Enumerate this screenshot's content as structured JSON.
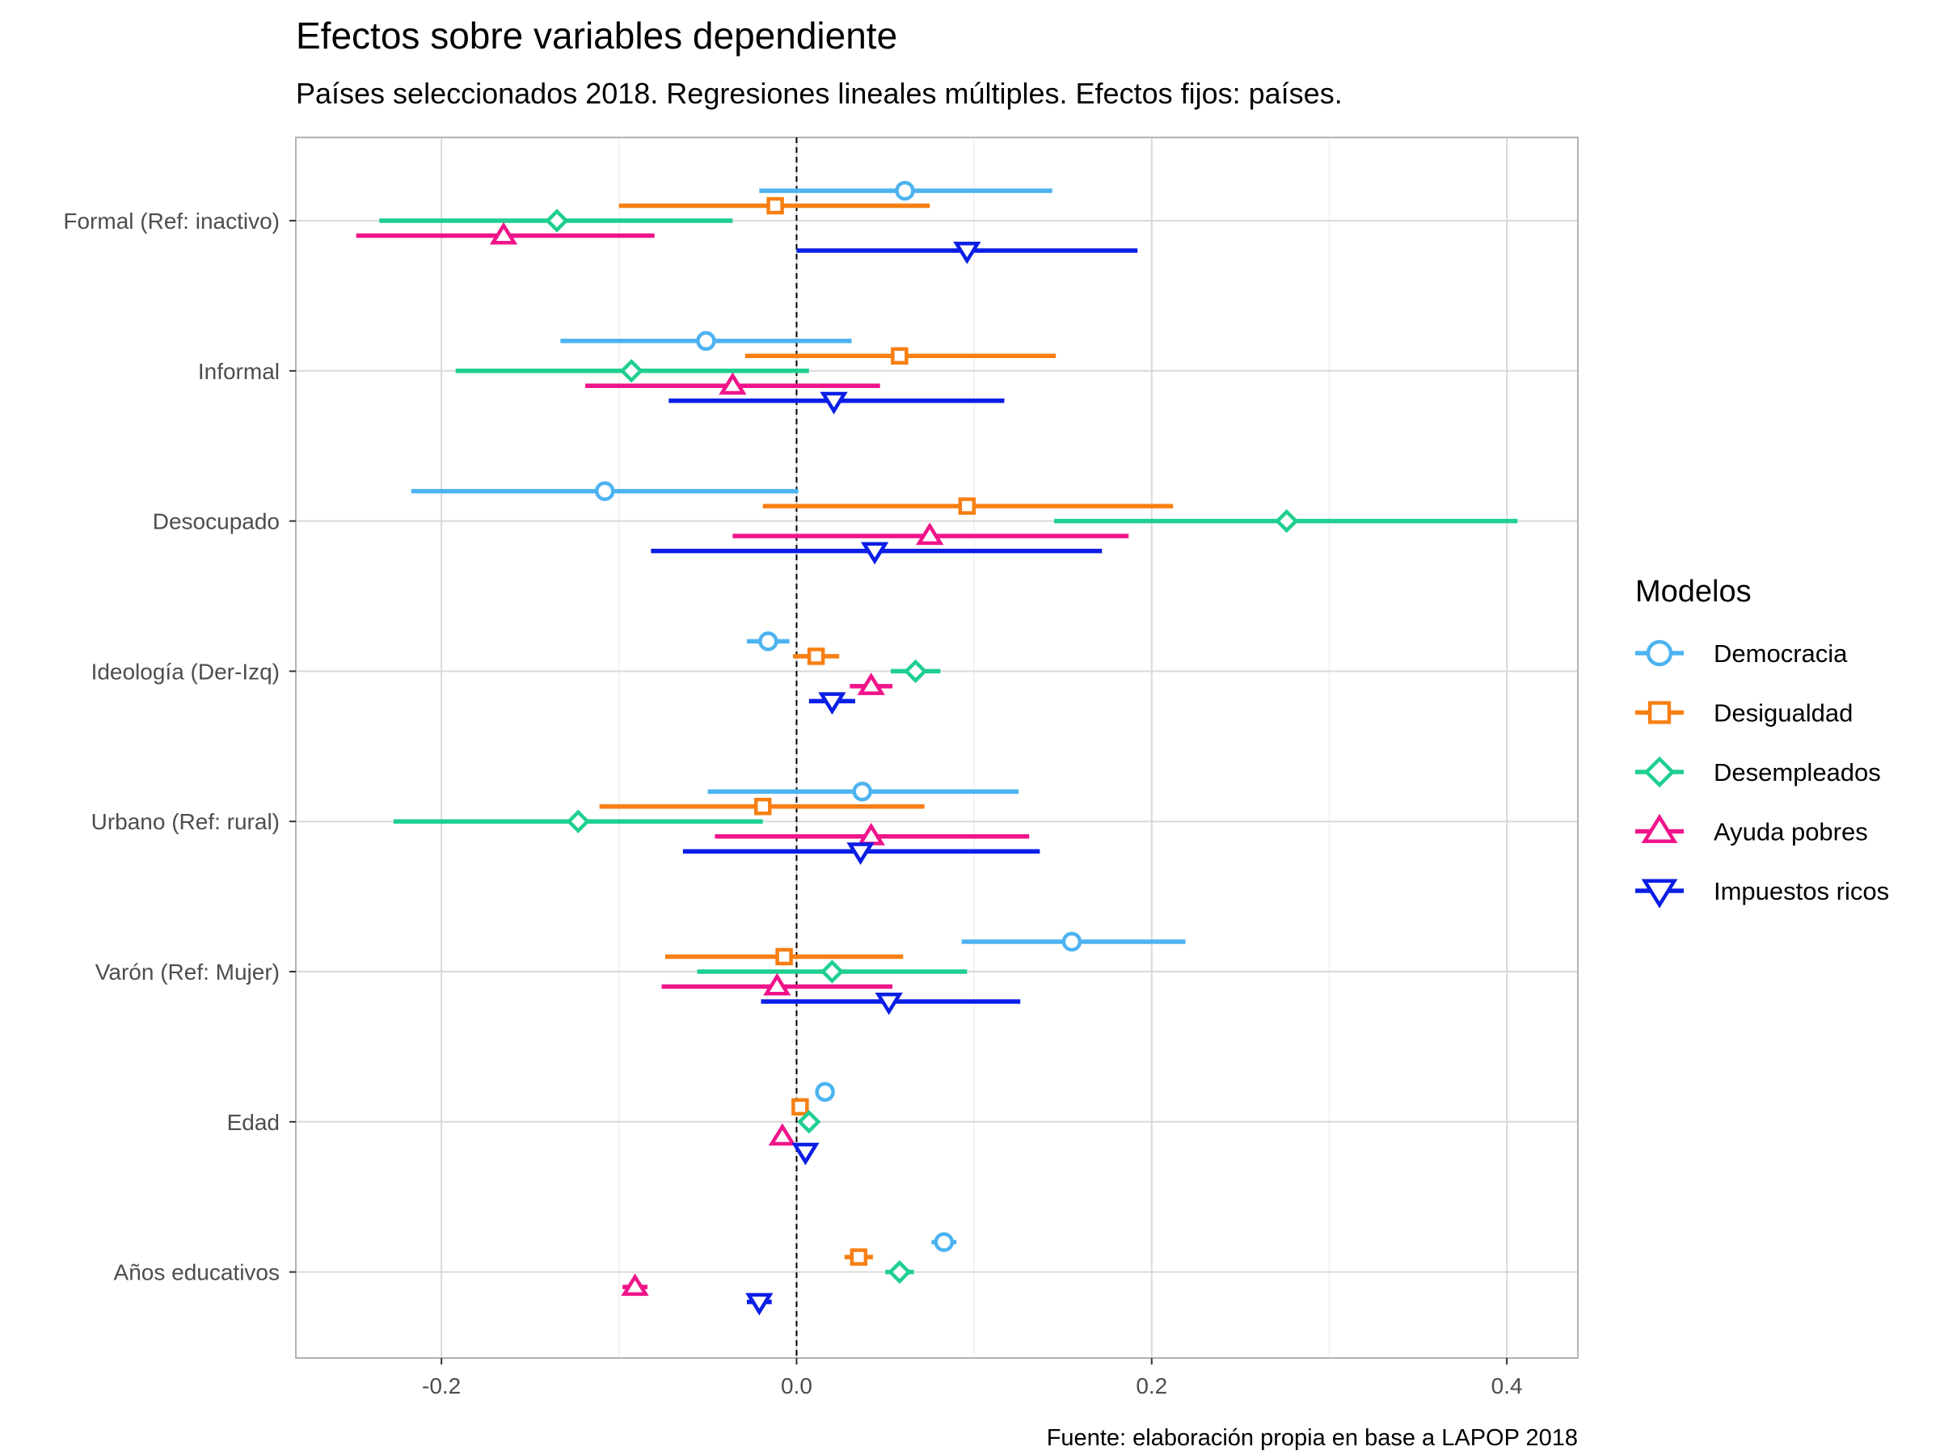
{
  "chart_data": {
    "type": "scatter",
    "title": "Efectos sobre variables dependiente",
    "subtitle": "Países seleccionados 2018. Regresiones lineales múltiples. Efectos fijos: países.",
    "caption": "Fuente: elaboración propia en base a LAPOP 2018",
    "xlabel": "",
    "ylabel": "",
    "xlim": [
      -0.282,
      0.44
    ],
    "x_ticks": [
      -0.2,
      0.0,
      0.2,
      0.4
    ],
    "x_tick_labels": [
      "-0.2",
      "0.0",
      "0.2",
      "0.4"
    ],
    "reference_line": 0,
    "grid": true,
    "legend": {
      "title": "Modelos",
      "position": "right"
    },
    "categories": [
      "Formal (Ref: inactivo)",
      "Informal",
      "Desocupado",
      "Ideología (Der-Izq)",
      "Urbano (Ref: rural)",
      "Varón (Ref: Mujer)",
      "Edad",
      "Años educativos"
    ],
    "series": [
      {
        "name": "Democracia",
        "color": "#4db3f0",
        "marker": "circle",
        "estimates": [
          0.061,
          -0.051,
          -0.108,
          -0.016,
          0.037,
          0.155,
          0.016,
          0.083
        ],
        "lower": [
          -0.021,
          -0.133,
          -0.217,
          -0.028,
          -0.05,
          0.093,
          0.013,
          0.076
        ],
        "upper": [
          0.144,
          0.031,
          0.001,
          -0.004,
          0.125,
          0.219,
          0.019,
          0.09
        ]
      },
      {
        "name": "Desigualdad",
        "color": "#f77f13",
        "marker": "square",
        "estimates": [
          -0.012,
          0.058,
          0.096,
          0.011,
          -0.019,
          -0.007,
          0.002,
          0.035
        ],
        "lower": [
          -0.1,
          -0.029,
          -0.019,
          -0.002,
          -0.111,
          -0.074,
          -0.001,
          0.027
        ],
        "upper": [
          0.075,
          0.146,
          0.212,
          0.024,
          0.072,
          0.06,
          0.005,
          0.043
        ]
      },
      {
        "name": "Desempleados",
        "color": "#1fcf8f",
        "marker": "diamond",
        "estimates": [
          -0.135,
          -0.093,
          0.276,
          0.067,
          -0.123,
          0.02,
          0.007,
          0.058
        ],
        "lower": [
          -0.235,
          -0.192,
          0.145,
          0.053,
          -0.227,
          -0.056,
          0.004,
          0.05
        ],
        "upper": [
          -0.036,
          0.007,
          0.406,
          0.081,
          -0.019,
          0.096,
          0.01,
          0.066
        ]
      },
      {
        "name": "Ayuda pobres",
        "color": "#f0148a",
        "marker": "triangle-up",
        "estimates": [
          -0.165,
          -0.036,
          0.075,
          0.042,
          0.042,
          -0.011,
          -0.008,
          -0.091
        ],
        "lower": [
          -0.248,
          -0.119,
          -0.036,
          0.03,
          -0.046,
          -0.076,
          -0.011,
          -0.098
        ],
        "upper": [
          -0.08,
          0.047,
          0.187,
          0.054,
          0.131,
          0.054,
          -0.005,
          -0.084
        ]
      },
      {
        "name": "Impuestos ricos",
        "color": "#0a1ee6",
        "marker": "triangle-down",
        "estimates": [
          0.096,
          0.021,
          0.044,
          0.02,
          0.036,
          0.052,
          0.005,
          -0.021
        ],
        "lower": [
          0.0,
          -0.072,
          -0.082,
          0.007,
          -0.064,
          -0.02,
          0.002,
          -0.028
        ],
        "upper": [
          0.192,
          0.117,
          0.172,
          0.033,
          0.137,
          0.126,
          0.008,
          -0.014
        ]
      }
    ]
  }
}
